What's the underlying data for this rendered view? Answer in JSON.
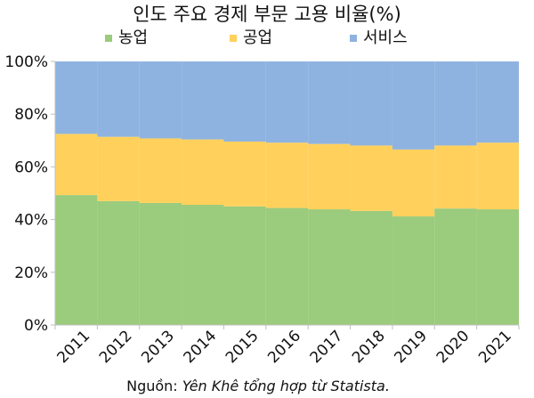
{
  "chart_data": {
    "type": "bar",
    "stacked": true,
    "percent_stacked": true,
    "title": "인도 주요 경제 부문 고용 비율(%)",
    "categories": [
      "2011",
      "2012",
      "2013",
      "2014",
      "2015",
      "2016",
      "2017",
      "2018",
      "2019",
      "2020",
      "2021"
    ],
    "series": [
      {
        "name": "농업",
        "color": "#9bcb7c",
        "values": [
          49.3,
          47.0,
          46.3,
          45.6,
          45.0,
          44.4,
          43.9,
          43.3,
          41.2,
          44.2,
          43.9
        ]
      },
      {
        "name": "공업",
        "color": "#ffd15c",
        "values": [
          23.2,
          24.4,
          24.5,
          24.8,
          24.6,
          24.8,
          24.8,
          24.8,
          25.4,
          23.9,
          25.3
        ]
      },
      {
        "name": "서비스",
        "color": "#8fb3e0",
        "values": [
          27.5,
          28.6,
          29.2,
          29.6,
          30.4,
          30.8,
          31.3,
          31.9,
          33.4,
          31.9,
          30.8
        ]
      }
    ],
    "y_ticks": [
      "0%",
      "20%",
      "40%",
      "60%",
      "80%",
      "100%"
    ],
    "ylim": [
      0,
      100
    ],
    "legend_position": "top",
    "grid": false,
    "source": {
      "label": "Nguồn:",
      "text": "Yên Khê tổng hợp từ Statista."
    }
  }
}
